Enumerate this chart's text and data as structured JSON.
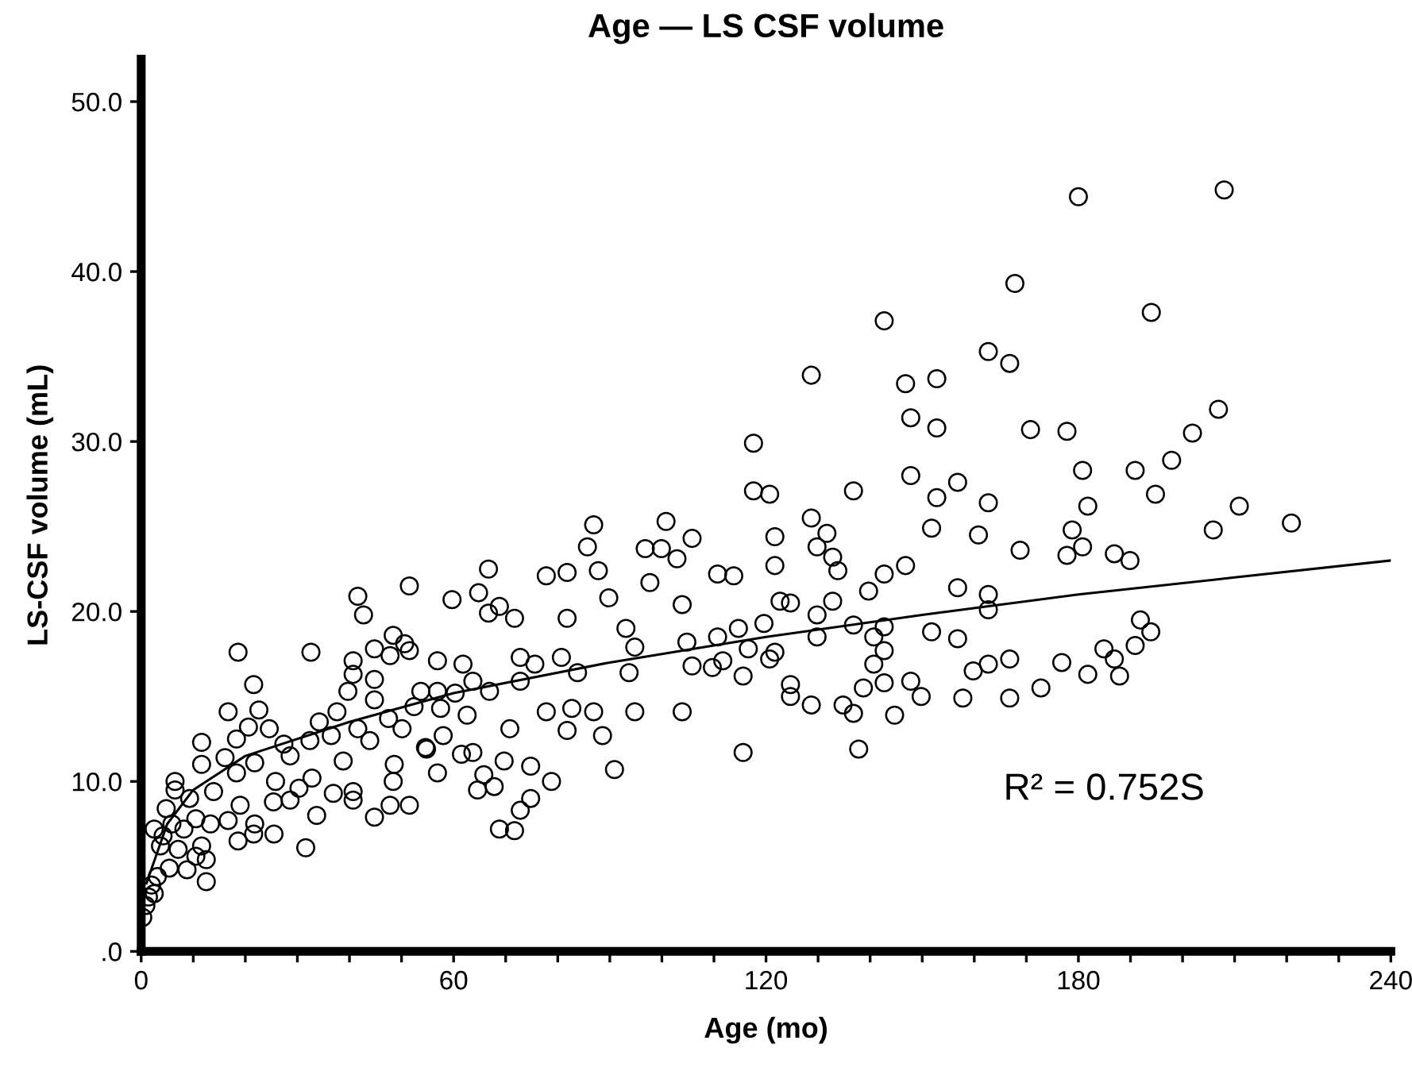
{
  "chart_data": {
    "type": "scatter",
    "title": "Age — LS CSF volume",
    "xlabel": "Age (mo)",
    "ylabel": "LS-CSF volume (mL)",
    "xlim": [
      0,
      240
    ],
    "ylim": [
      0,
      52.5
    ],
    "xticks": [
      0,
      {
        "value": 10,
        "label": null
      },
      {
        "value": 20,
        "label": null
      },
      {
        "value": 30,
        "label": null
      },
      {
        "value": 40,
        "label": null
      },
      {
        "value": 50,
        "label": null
      },
      60,
      {
        "value": 70,
        "label": null
      },
      {
        "value": 80,
        "label": null
      },
      {
        "value": 90,
        "label": null
      },
      {
        "value": 100,
        "label": null
      },
      {
        "value": 110,
        "label": null
      },
      120,
      {
        "value": 130,
        "label": null
      },
      {
        "value": 140,
        "label": null
      },
      {
        "value": 150,
        "label": null
      },
      {
        "value": 160,
        "label": null
      },
      {
        "value": 170,
        "label": null
      },
      180,
      {
        "value": 190,
        "label": null
      },
      {
        "value": 200,
        "label": null
      },
      {
        "value": 210,
        "label": null
      },
      {
        "value": 220,
        "label": null
      },
      {
        "value": 230,
        "label": null
      },
      240
    ],
    "yticks": [
      {
        "value": 0,
        "label": ".0"
      },
      {
        "value": 10,
        "label": "10.0"
      },
      {
        "value": 20,
        "label": "20.0"
      },
      {
        "value": 30,
        "label": "30.0"
      },
      {
        "value": 40,
        "label": "40.0"
      },
      {
        "value": 50,
        "label": "50.0"
      }
    ],
    "grid": false,
    "legend": false,
    "marker": "circle",
    "annotations": [
      "R² = 0.752S"
    ],
    "series": [
      {
        "color": "#000000",
        "x": [
          180,
          208,
          167.8,
          194,
          142.7,
          162.7,
          166.8,
          128.7,
          146.8,
          152.8,
          206.9,
          147.8,
          152.8,
          201.9,
          170.8,
          177.8,
          117.6,
          197.9,
          180.8,
          190.9,
          147.8,
          156.8,
          117.6,
          120.7,
          136.8,
          152.8,
          162.7,
          194.8,
          181.8,
          210.9,
          128.7,
          220.9,
          205.9,
          151.8,
          121.7,
          131.7,
          160.8,
          178.8,
          129.8,
          132.8,
          168.8,
          180.8,
          177.8,
          186.9,
          189.9,
          110.7,
          113.8,
          121.7,
          133.8,
          146.8,
          142.7,
          139.7,
          156.8,
          162.7,
          162.7,
          122.7,
          124.7,
          132.8,
          129.8,
          119.6,
          136.8,
          142.7,
          110.7,
          114.7,
          129.8,
          140.7,
          151.8,
          156.8,
          191.9,
          193.9,
          190.9,
          184.9,
          186.9,
          176.8,
          116.6,
          121.7,
          120.7,
          111.7,
          109.7,
          115.6,
          142.7,
          140.7,
          162.7,
          159.8,
          166.8,
          124.7,
          124.7,
          128.7,
          134.8,
          136.8,
          138.7,
          142.7,
          144.7,
          147.8,
          149.8,
          157.8,
          166.8,
          172.8,
          181.8,
          187.9,
          115.6,
          137.8,
          18.6,
          32.6,
          41.6,
          42.7,
          51.5,
          59.7,
          64.8,
          66.7,
          66.7,
          68.8,
          71.7,
          77.8,
          81.8,
          81.8,
          86.9,
          85.7,
          87.8,
          89.8,
          97.7,
          96.8,
          99.9,
          100.8,
          105.8,
          102.9,
          103.9,
          104.8,
          105.8,
          103.9,
          90.9,
          93.1,
          94.8,
          94.8,
          88.6,
          86.9,
          81.8,
          82.7,
          77.8,
          78.8,
          74.8,
          72.8,
          71.7,
          68.8,
          74.8,
          70.8,
          69.7,
          65.8,
          64.6,
          67.8,
          63.7,
          62.6,
          61.5,
          61.8,
          56.9,
          57.5,
          54.6,
          56.9,
          58.0,
          56.9,
          72.8,
          72.8,
          75.6,
          80.7,
          83.8,
          93.7,
          66.9,
          63.7,
          60.3,
          51.5,
          48.4,
          50.6,
          47.8,
          44.8,
          40.7,
          40.7,
          39.7,
          44.8,
          44.8,
          47.5,
          50.1,
          53.7,
          52.4,
          54.8,
          48.6,
          48.4,
          47.8,
          51.5,
          44.8,
          40.7,
          40.7,
          36.9,
          33.7,
          31.6,
          32.8,
          43.9,
          41.6,
          37.6,
          34.2,
          36.5,
          32.4,
          38.8,
          30.3,
          27.4,
          28.6,
          25.8,
          25.4,
          28.6,
          25.5,
          22.6,
          24.6,
          21.6,
          16.7,
          11.6,
          21.8,
          20.6,
          18.3,
          18.3,
          21.8,
          21.6,
          18.6,
          16.7,
          19.0,
          13.9,
          13.3,
          11.6,
          16.1,
          6.5,
          6.5,
          4.8,
          9.3,
          10.5,
          2.5,
          3.7,
          7.1,
          8.8,
          12.5,
          12.5,
          10.5,
          5.4,
          3.1,
          2.0,
          2.5,
          0.9,
          0.3,
          1.4,
          5.9,
          4.2,
          8.2,
          11.6
        ],
        "values": [
          44.4,
          44.8,
          39.3,
          37.6,
          37.1,
          35.3,
          34.6,
          33.9,
          33.4,
          33.7,
          31.9,
          31.4,
          30.8,
          30.5,
          30.7,
          30.6,
          29.9,
          28.9,
          28.3,
          28.3,
          28.0,
          27.6,
          27.1,
          26.9,
          27.1,
          26.7,
          26.4,
          26.9,
          26.2,
          26.2,
          25.5,
          25.2,
          24.8,
          24.9,
          24.4,
          24.6,
          24.5,
          24.8,
          23.8,
          23.2,
          23.6,
          23.8,
          23.3,
          23.4,
          23.0,
          22.2,
          22.1,
          22.7,
          22.4,
          22.7,
          22.2,
          21.2,
          21.4,
          21.0,
          20.1,
          20.6,
          20.5,
          20.6,
          19.8,
          19.3,
          19.2,
          19.1,
          18.5,
          19.0,
          18.5,
          18.5,
          18.8,
          18.4,
          19.5,
          18.8,
          18.0,
          17.8,
          17.2,
          17.0,
          17.8,
          17.6,
          17.2,
          17.1,
          16.7,
          16.2,
          17.7,
          16.9,
          16.9,
          16.5,
          17.2,
          15.7,
          15.0,
          14.5,
          14.5,
          14.0,
          15.5,
          15.8,
          13.9,
          15.9,
          15.0,
          14.9,
          14.9,
          15.5,
          16.3,
          16.2,
          11.7,
          11.9,
          17.6,
          17.6,
          20.9,
          19.8,
          21.5,
          20.7,
          21.1,
          22.5,
          19.9,
          20.3,
          19.6,
          22.1,
          22.3,
          19.6,
          25.1,
          23.8,
          22.4,
          20.8,
          21.7,
          23.7,
          23.7,
          25.3,
          24.3,
          23.1,
          20.4,
          18.2,
          16.8,
          14.1,
          10.7,
          19.0,
          17.9,
          14.1,
          12.7,
          14.1,
          13.0,
          14.3,
          14.1,
          10.0,
          9.0,
          8.3,
          7.1,
          7.2,
          10.9,
          13.1,
          11.2,
          10.4,
          9.5,
          9.7,
          11.7,
          13.9,
          11.6,
          16.9,
          17.1,
          14.3,
          12.0,
          10.5,
          12.7,
          15.3,
          17.3,
          15.9,
          16.9,
          17.3,
          16.4,
          16.4,
          15.3,
          15.9,
          15.2,
          17.7,
          18.6,
          18.1,
          17.4,
          17.8,
          17.1,
          16.3,
          15.3,
          16.0,
          14.8,
          13.7,
          13.1,
          15.3,
          14.4,
          11.9,
          11.0,
          10.0,
          8.6,
          8.6,
          7.9,
          9.4,
          8.9,
          9.3,
          8.0,
          6.1,
          10.2,
          12.4,
          13.1,
          14.1,
          13.5,
          12.7,
          12.4,
          11.2,
          9.6,
          12.2,
          11.5,
          10.0,
          8.8,
          8.9,
          6.9,
          14.2,
          13.1,
          15.7,
          14.1,
          12.3,
          11.1,
          13.2,
          12.5,
          10.5,
          7.5,
          6.9,
          6.5,
          7.7,
          8.6,
          9.4,
          7.5,
          11.0,
          11.4,
          10.0,
          9.5,
          8.4,
          9.0,
          7.8,
          7.2,
          6.2,
          6.0,
          4.8,
          5.4,
          4.1,
          5.6,
          4.9,
          4.4,
          3.9,
          3.4,
          2.7,
          2.0,
          3.2,
          7.5,
          6.8,
          7.2,
          6.2
        ]
      },
      {
        "type": "line",
        "color": "#000000",
        "marker": "none",
        "x": [
          1,
          5,
          10,
          20,
          40,
          60,
          90,
          120,
          150,
          180,
          210,
          240
        ],
        "values": [
          4,
          7.5,
          9.5,
          11.5,
          13.5,
          15.2,
          17,
          18.5,
          19.8,
          21,
          22,
          23
        ]
      }
    ]
  }
}
